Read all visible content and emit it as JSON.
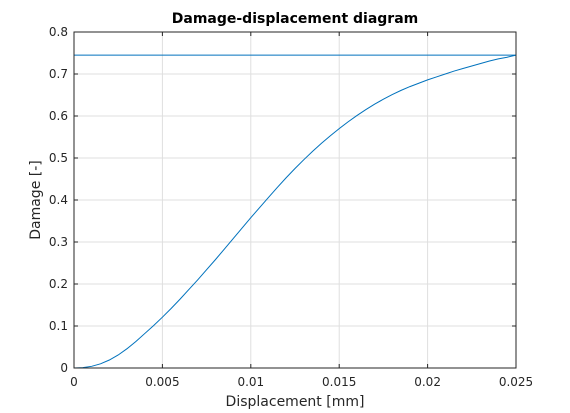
{
  "chart_data": {
    "type": "line",
    "title": "Damage-displacement diagram",
    "xlabel": "Displacement [mm]",
    "ylabel": "Damage [-]",
    "xlim": [
      0,
      0.025
    ],
    "ylim": [
      0,
      0.8
    ],
    "xticks": [
      "0",
      "0.005",
      "0.01",
      "0.015",
      "0.02",
      "0.025"
    ],
    "yticks": [
      "0",
      "0.1",
      "0.2",
      "0.3",
      "0.4",
      "0.5",
      "0.6",
      "0.7",
      "0.8"
    ],
    "xtick_values": [
      0,
      0.005,
      0.01,
      0.015,
      0.02,
      0.025
    ],
    "ytick_values": [
      0,
      0.1,
      0.2,
      0.3,
      0.4,
      0.5,
      0.6,
      0.7,
      0.8
    ],
    "grid": true,
    "line_color": "#0072bd",
    "series": [
      {
        "x": [
          0,
          0.0005,
          0.001,
          0.0015,
          0.002,
          0.0025,
          0.003,
          0.0035,
          0.004,
          0.0045,
          0.005,
          0.0055,
          0.006,
          0.0065,
          0.007,
          0.0075,
          0.008,
          0.0085,
          0.009,
          0.0095,
          0.01,
          0.0105,
          0.011,
          0.0115,
          0.012,
          0.0125,
          0.013,
          0.0135,
          0.014,
          0.0145,
          0.015,
          0.0155,
          0.016,
          0.0165,
          0.017,
          0.0175,
          0.018,
          0.0185,
          0.019,
          0.0195,
          0.02,
          0.0205,
          0.021,
          0.0215,
          0.022,
          0.0225,
          0.023,
          0.0235,
          0.024,
          0.0245,
          0.025
        ],
        "y": [
          0,
          0.001,
          0.004,
          0.01,
          0.019,
          0.031,
          0.046,
          0.063,
          0.082,
          0.101,
          0.121,
          0.142,
          0.164,
          0.187,
          0.21,
          0.234,
          0.258,
          0.283,
          0.308,
          0.333,
          0.358,
          0.382,
          0.406,
          0.43,
          0.453,
          0.475,
          0.496,
          0.516,
          0.535,
          0.553,
          0.57,
          0.586,
          0.601,
          0.615,
          0.628,
          0.64,
          0.651,
          0.661,
          0.67,
          0.678,
          0.686,
          0.693,
          0.7,
          0.707,
          0.713,
          0.719,
          0.725,
          0.731,
          0.736,
          0.74,
          0.745
        ]
      },
      {
        "x": [
          0,
          0.025
        ],
        "y": [
          0.745,
          0.745
        ]
      }
    ]
  }
}
